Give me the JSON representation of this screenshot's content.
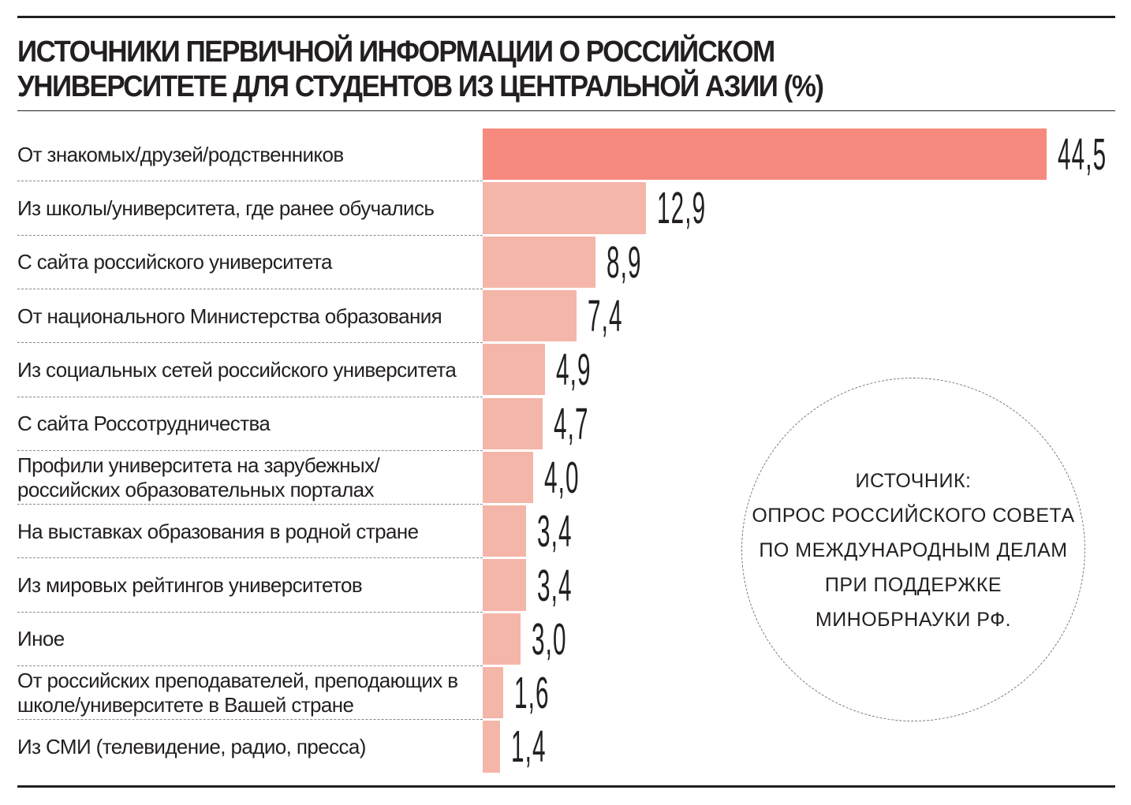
{
  "chart_data": {
    "type": "bar",
    "orientation": "horizontal",
    "title": "ИСТОЧНИКИ ПЕРВИЧНОЙ ИНФОРМАЦИИ О РОССИЙСКОМ УНИВЕРСИТЕТЕ ДЛЯ СТУДЕНТОВ ИЗ ЦЕНТРАЛЬНОЙ АЗИИ (%)",
    "categories": [
      "От знакомых/друзей/родственников",
      "Из школы/университета, где ранее обучались",
      "С сайта российского университета",
      "От национального Министерства образования",
      "Из социальных сетей российского университета",
      "С сайта Россотрудничества",
      "Профили университета на зарубежных/ российских образовательных порталах",
      "На выставках образования в родной стране",
      "Из мировых рейтингов университетов",
      "Иное",
      "От российских преподавателей, преподающих в школе/университете в Вашей стране",
      "Из СМИ (телевидение, радио, пресса)"
    ],
    "series": [
      {
        "colors": [
          "#f78a7e",
          "#f4b6a8",
          "#f4b6a8",
          "#f4b6a8",
          "#f4b6a8",
          "#f4b6a8",
          "#f4b6a8",
          "#f4b6a8",
          "#f4b6a8",
          "#f4b6a8",
          "#f4b6a8",
          "#f4b6a8"
        ],
        "values": [
          44.5,
          12.9,
          8.9,
          7.4,
          4.9,
          4.7,
          4.0,
          3.4,
          3.4,
          3.0,
          1.6,
          1.4
        ],
        "value_labels": [
          "44,5",
          "12,9",
          "8,9",
          "7,4",
          "4,9",
          "4,7",
          "4,0",
          "3,4",
          "3,4",
          "3,0",
          "1,6",
          "1,4"
        ]
      }
    ],
    "source": [
      "ИСТОЧНИК:",
      "ОПРОС РОССИЙСКОГО СОВЕТА",
      "ПО МЕЖДУНАРОДНЫМ ДЕЛАМ",
      "ПРИ ПОДДЕРЖКЕ",
      "МИНОБРНАУКИ РФ."
    ]
  }
}
